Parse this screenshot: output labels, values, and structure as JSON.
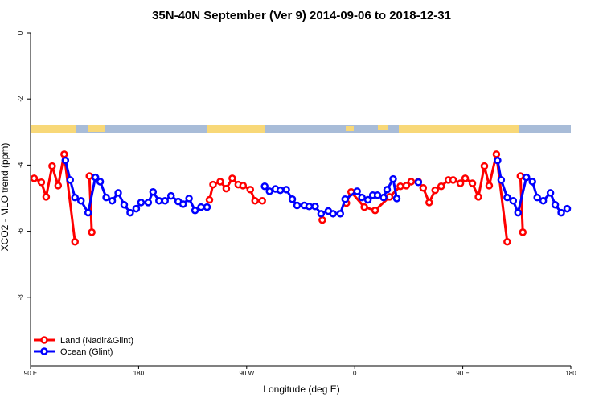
{
  "chart_data": {
    "type": "line",
    "title": "35N-40N September (Ver 9)   2014-09-06 to 2018-12-31",
    "x_label": "Longitude (deg E)",
    "y_label": "XCO2 - MLO trend (ppm)",
    "xlim": [
      90,
      540
    ],
    "xticks": [
      {
        "value": 90,
        "label": "90 E"
      },
      180,
      {
        "value": 270,
        "label": "90 W"
      },
      {
        "value": 360,
        "label": "0"
      },
      {
        "value": 450,
        "label": "90 E"
      },
      180
    ],
    "ylim": [
      -10,
      0
    ],
    "yticks": [
      0,
      -2,
      -4,
      -6,
      -8
    ],
    "legend": "bottom-left",
    "series": [
      {
        "name": "Land (Nadir&Glint)",
        "color": "#ff0000",
        "x": [
          93,
          99,
          103,
          108,
          113,
          118,
          127,
          null,
          139,
          141,
          null,
          239,
          242,
          248,
          253,
          258,
          263,
          267,
          273,
          277,
          283,
          null,
          333,
          null,
          353,
          357,
          368,
          377,
          389,
          398,
          403,
          407,
          413,
          417,
          422,
          427,
          432,
          438,
          442,
          448,
          452,
          458,
          463,
          468,
          472,
          478,
          487,
          null,
          498,
          500
        ],
        "values": [
          -4.4,
          -4.52,
          -4.96,
          -4.03,
          -4.62,
          -3.67,
          -6.32,
          null,
          -4.33,
          -6.03,
          null,
          -5.05,
          -4.59,
          -4.5,
          -4.71,
          -4.4,
          -4.59,
          -4.62,
          -4.74,
          -5.08,
          -5.08,
          null,
          -5.66,
          null,
          -5.15,
          -4.81,
          -5.27,
          -5.37,
          -4.96,
          -4.64,
          -4.62,
          -4.5,
          -4.5,
          -4.69,
          -5.13,
          -4.76,
          -4.64,
          -4.45,
          -4.45,
          -4.55,
          -4.4,
          -4.55,
          -4.96,
          -4.03,
          -4.62,
          -3.67,
          -6.32,
          null,
          -4.33,
          -6.03
        ]
      },
      {
        "name": "Ocean (Glint)",
        "color": "#0000ff",
        "x": [
          119,
          123,
          127,
          132,
          138,
          144,
          148,
          153,
          158,
          163,
          168,
          173,
          178,
          182,
          188,
          192,
          197,
          202,
          207,
          213,
          217,
          222,
          227,
          232,
          237,
          null,
          285,
          289,
          294,
          298,
          303,
          308,
          312,
          318,
          322,
          327,
          332,
          338,
          342,
          348,
          352,
          362,
          366,
          371,
          375,
          379,
          384,
          387,
          392,
          395,
          null,
          413,
          null,
          479,
          482,
          487,
          492,
          496,
          503,
          508,
          512,
          517,
          523,
          527,
          532,
          537
        ],
        "values": [
          -3.86,
          -4.45,
          -4.98,
          -5.08,
          -5.44,
          -4.37,
          -4.5,
          -4.98,
          -5.08,
          -4.84,
          -5.2,
          -5.44,
          -5.32,
          -5.13,
          -5.13,
          -4.81,
          -5.08,
          -5.08,
          -4.93,
          -5.1,
          -5.18,
          -5.01,
          -5.37,
          -5.27,
          -5.27,
          null,
          -4.64,
          -4.79,
          -4.72,
          -4.76,
          -4.74,
          -5.03,
          -5.22,
          -5.22,
          -5.25,
          -5.25,
          -5.47,
          -5.39,
          -5.47,
          -5.47,
          -5.03,
          -4.79,
          -4.98,
          -5.05,
          -4.91,
          -4.91,
          -4.98,
          -4.74,
          -4.42,
          -5.01,
          null,
          -4.52,
          null,
          -3.86,
          -4.45,
          -4.98,
          -5.08,
          -5.44,
          -4.37,
          -4.5,
          -4.98,
          -5.08,
          -4.84,
          -5.2,
          -5.44,
          -5.32
        ]
      }
    ]
  }
}
